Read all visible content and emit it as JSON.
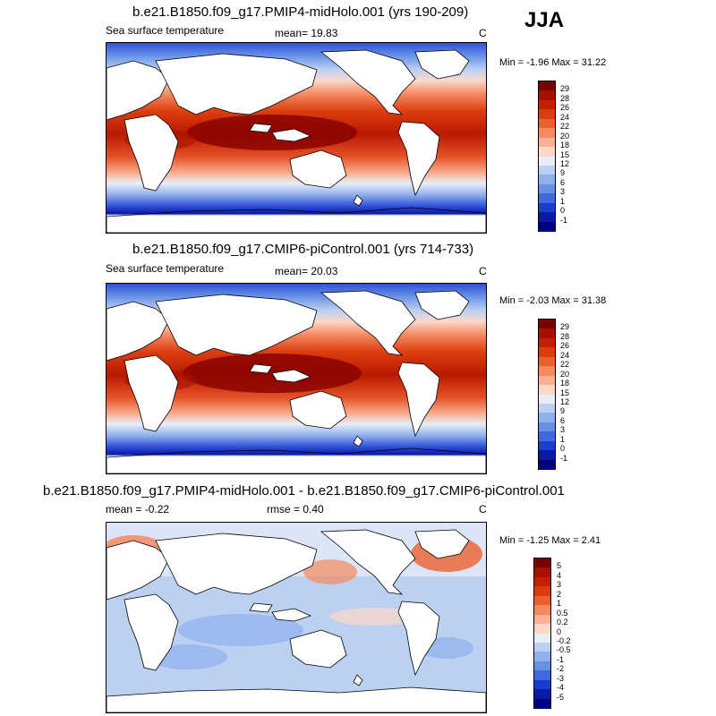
{
  "season": "JJA",
  "panels": [
    {
      "title": "b.e21.B1850.f09_g17.PMIP4-midHolo.001 (yrs 190-209)",
      "left_label": "Sea surface temperature",
      "center_label": "mean=  19.83",
      "right_label": "C",
      "minmax": "Min =  -1.96 Max =  31.22"
    },
    {
      "title": "b.e21.B1850.f09_g17.CMIP6-piControl.001 (yrs 714-733)",
      "left_label": "Sea surface temperature",
      "center_label": "mean=  20.03",
      "right_label": "C",
      "minmax": "Min =  -2.03 Max =  31.38"
    },
    {
      "title": "b.e21.B1850.f09_g17.PMIP4-midHolo.001 - b.e21.B1850.f09_g17.CMIP6-piControl.001",
      "left_label": "mean =  -0.22",
      "center_label": "rmse =   0.40",
      "right_label": "C",
      "minmax": "Min =  -1.25 Max =   2.41"
    }
  ],
  "colorbars": {
    "sst": {
      "labels": [
        "29",
        "28",
        "26",
        "24",
        "22",
        "20",
        "18",
        "15",
        "12",
        "9",
        "6",
        "3",
        "1",
        "0",
        "-1"
      ],
      "colors": [
        "#7a0000",
        "#a51000",
        "#c42000",
        "#dc3d10",
        "#ec6030",
        "#f58a60",
        "#fab094",
        "#fcd8c8",
        "#e8eef8",
        "#bcd0f2",
        "#90b0ec",
        "#6890e4",
        "#4068e0",
        "#1c3cd0",
        "#0a1aa8",
        "#000080"
      ]
    },
    "diff": {
      "labels": [
        "5",
        "4",
        "3",
        "2",
        "1",
        "0.5",
        "0.2",
        "0",
        "-0.2",
        "-0.5",
        "-1",
        "-2",
        "-3",
        "-4",
        "-5"
      ],
      "colors": [
        "#7a0000",
        "#a51000",
        "#c42000",
        "#dc3d10",
        "#ec6030",
        "#f58a60",
        "#fab094",
        "#fcd8c8",
        "#e8eef8",
        "#bcd0f2",
        "#90b0ec",
        "#6890e4",
        "#4068e0",
        "#1c3cd0",
        "#0a1aa8",
        "#000080"
      ]
    }
  }
}
